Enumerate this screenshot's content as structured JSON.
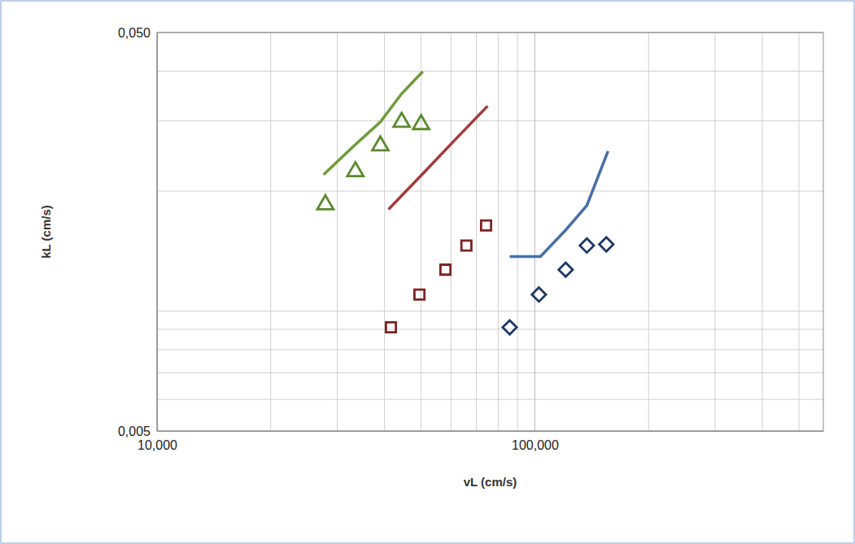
{
  "chart_data": {
    "type": "scatter",
    "x_label": "vL (cm/s)",
    "y_label": "kL (cm/s)",
    "log": true,
    "grid": true,
    "xlim": [
      10,
      580
    ],
    "xticks": [
      {
        "value": 10,
        "label": "10,000"
      },
      {
        "value": 100,
        "label": "100,000"
      }
    ],
    "ylim": [
      0.005,
      0.05
    ],
    "yticks": [
      {
        "value": 0.005,
        "label": "0,005"
      },
      {
        "value": 0.05,
        "label": "0,050"
      }
    ],
    "series": [
      {
        "type": "scatter",
        "marker": "triangle",
        "color": "#5a8a2e",
        "x": [
          27.9,
          33.5,
          39.0,
          44.4,
          50.0
        ],
        "values": [
          0.0185,
          0.0224,
          0.026,
          0.0298,
          0.0294
        ]
      },
      {
        "type": "line",
        "line_style": "solid",
        "color": "#6f9a3c",
        "x": [
          27.6,
          33.1,
          39.0,
          44.4,
          50.5
        ],
        "values": [
          0.022,
          0.0259,
          0.0298,
          0.0351,
          0.0399
        ]
      },
      {
        "type": "scatter",
        "marker": "square",
        "color": "#7b2424",
        "x": [
          41.6,
          49.5,
          58.0,
          65.9,
          74.3
        ],
        "values": [
          0.0091,
          0.011,
          0.0127,
          0.0146,
          0.0164
        ]
      },
      {
        "type": "line",
        "line_style": "solid",
        "color": "#a33a3a",
        "x": [
          41.0,
          50.5,
          61.5,
          75.0
        ],
        "values": [
          0.018,
          0.0221,
          0.0269,
          0.0327
        ]
      },
      {
        "type": "scatter",
        "marker": "diamond",
        "color": "#1f3864",
        "x": [
          85.8,
          102.5,
          120.7,
          137.3,
          154.6
        ],
        "values": [
          0.0091,
          0.011,
          0.0127,
          0.0146,
          0.0147
        ]
      },
      {
        "type": "line",
        "line_style": "solid",
        "color": "#4a6fa5",
        "x": [
          85.8,
          103.5,
          120.9,
          137.3,
          156.2
        ],
        "values": [
          0.0137,
          0.0137,
          0.016,
          0.0184,
          0.0252
        ]
      }
    ]
  }
}
